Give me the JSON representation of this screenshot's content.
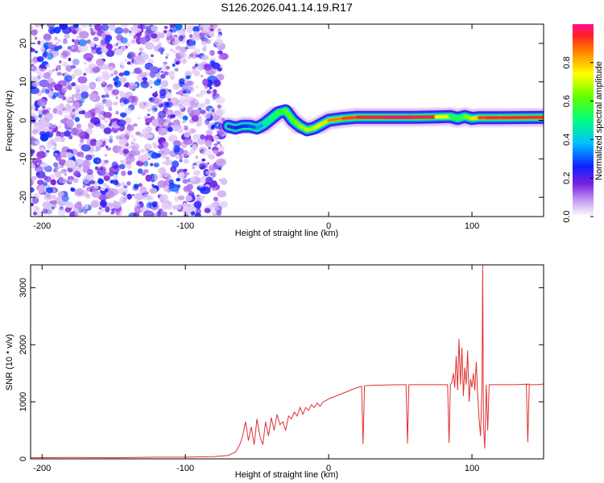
{
  "title": "S126.2026.041.14.19.R17",
  "colors": {
    "snr_line": "#e03030",
    "axis": "#000000",
    "background": "#ffffff"
  },
  "chart_data": [
    {
      "type": "heatmap",
      "name": "spectrogram",
      "xlabel": "Height of straight line (km)",
      "ylabel": "Frequency (Hz)",
      "xlim": [
        -208,
        150
      ],
      "ylim": [
        -25,
        25
      ],
      "x_ticks": [
        -200,
        -100,
        0,
        100
      ],
      "x_tick_labels": [
        "-200",
        "-100",
        "0",
        "100"
      ],
      "y_ticks": [
        -20,
        -10,
        0,
        10,
        20
      ],
      "y_tick_labels": [
        "-20",
        "-10",
        "0",
        "10",
        "20"
      ],
      "noise_region_x": [
        -208,
        -73
      ],
      "ridge": {
        "x": [
          -70,
          -65,
          -60,
          -55,
          -50,
          -45,
          -40,
          -35,
          -30,
          -25,
          -20,
          -15,
          -10,
          -5,
          0,
          10,
          20,
          40,
          60,
          75,
          85,
          90,
          95,
          100,
          105,
          110,
          120,
          150
        ],
        "y": [
          -1.5,
          -2,
          -1.5,
          -1.5,
          -2,
          -1,
          0.5,
          2,
          2.5,
          0,
          -1.5,
          -2.5,
          -2,
          -1,
          0,
          0.5,
          0.8,
          0.8,
          0.8,
          0.9,
          1.0,
          0.5,
          1.0,
          0.5,
          0.7,
          0.7,
          0.7,
          0.8
        ],
        "amplitude": [
          0.2,
          0.25,
          0.25,
          0.3,
          0.3,
          0.4,
          0.5,
          0.55,
          0.6,
          0.6,
          0.65,
          0.7,
          0.7,
          0.75,
          0.8,
          0.85,
          0.9,
          0.95,
          0.95,
          0.9,
          0.6,
          0.5,
          0.6,
          0.7,
          0.85,
          0.9,
          0.9,
          0.9
        ]
      },
      "colorbar": {
        "label": "Normalized spectral amplitude",
        "range": [
          0,
          1
        ],
        "ticks": [
          0.0,
          0.2,
          0.4,
          0.6,
          0.8
        ],
        "tick_labels": [
          "0.0",
          "0.2",
          "0.4",
          "0.6",
          "0.8"
        ]
      }
    },
    {
      "type": "line",
      "name": "snr",
      "xlabel": "Height of straight line (km)",
      "ylabel": "SNR (10 * v/v)",
      "xlim": [
        -208,
        150
      ],
      "ylim": [
        0,
        3400
      ],
      "x_ticks": [
        -200,
        -100,
        0,
        100
      ],
      "x_tick_labels": [
        "-200",
        "-100",
        "0",
        "100"
      ],
      "y_ticks": [
        0,
        1000,
        2000,
        3000
      ],
      "y_tick_labels": [
        "0",
        "1000",
        "2000",
        "3000"
      ],
      "series": [
        {
          "name": "SNR",
          "x": [
            -208,
            -180,
            -150,
            -120,
            -100,
            -80,
            -70,
            -65,
            -62,
            -60,
            -58,
            -56,
            -54,
            -52,
            -50,
            -48,
            -46,
            -44,
            -42,
            -40,
            -38,
            -36,
            -34,
            -32,
            -30,
            -28,
            -26,
            -24,
            -22,
            -20,
            -18,
            -16,
            -14,
            -12,
            -10,
            -8,
            -6,
            -4,
            -2,
            0,
            5,
            10,
            15,
            20,
            23,
            24,
            25,
            30,
            40,
            50,
            54,
            55,
            56,
            60,
            70,
            80,
            83,
            84,
            85,
            86,
            87,
            88,
            89,
            90,
            91,
            92,
            93,
            94,
            95,
            96,
            97,
            98,
            99,
            100,
            101,
            102,
            103,
            104,
            105,
            106,
            107,
            107.5,
            108,
            109,
            110,
            111,
            112,
            120,
            130,
            140,
            138,
            139,
            140,
            145,
            150
          ],
          "y": [
            20,
            25,
            20,
            30,
            30,
            40,
            60,
            120,
            250,
            400,
            650,
            320,
            560,
            250,
            700,
            400,
            250,
            650,
            400,
            720,
            500,
            780,
            600,
            650,
            500,
            750,
            700,
            820,
            750,
            900,
            780,
            900,
            850,
            950,
            900,
            980,
            920,
            1000,
            1020,
            1050,
            1100,
            1150,
            1200,
            1250,
            1270,
            260,
            1280,
            1290,
            1295,
            1300,
            1300,
            270,
            1300,
            1300,
            1300,
            1300,
            1300,
            280,
            1300,
            1340,
            1500,
            1250,
            1800,
            1200,
            2100,
            1300,
            1950,
            1100,
            1600,
            1300,
            1900,
            1000,
            1400,
            1250,
            1500,
            1200,
            1700,
            1100,
            700,
            400,
            1300,
            3400,
            600,
            180,
            1300,
            500,
            1300,
            1300,
            1300,
            1310,
            1300,
            290,
            1300,
            1300,
            1310
          ]
        }
      ]
    }
  ]
}
